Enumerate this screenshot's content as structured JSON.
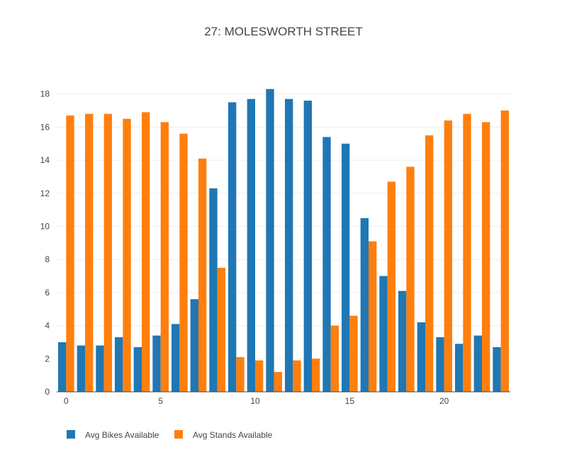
{
  "chart_data": {
    "type": "bar",
    "title": "27: MOLESWORTH STREET",
    "xlabel": "",
    "ylabel": "",
    "x": [
      0,
      1,
      2,
      3,
      4,
      5,
      6,
      7,
      8,
      9,
      10,
      11,
      12,
      13,
      14,
      15,
      16,
      17,
      18,
      19,
      20,
      21,
      22,
      23
    ],
    "xlim": [
      -0.5,
      23.5
    ],
    "ylim": [
      0,
      18.8
    ],
    "xticks": [
      0,
      5,
      10,
      15,
      20
    ],
    "yticks": [
      0,
      2,
      4,
      6,
      8,
      10,
      12,
      14,
      16,
      18
    ],
    "grid": true,
    "legend_position": "bottom-left",
    "series": [
      {
        "name": "Avg Bikes Available",
        "color": "#1f77b4",
        "values": [
          3.0,
          2.8,
          2.8,
          3.3,
          2.7,
          3.4,
          4.1,
          5.6,
          12.3,
          17.5,
          17.7,
          18.3,
          17.7,
          17.6,
          15.4,
          15.0,
          10.5,
          7.0,
          6.1,
          4.2,
          3.3,
          2.9,
          3.4,
          2.7
        ]
      },
      {
        "name": "Avg Stands Available",
        "color": "#ff7f0e",
        "values": [
          16.7,
          16.8,
          16.8,
          16.5,
          16.9,
          16.3,
          15.6,
          14.1,
          7.5,
          2.1,
          1.9,
          1.2,
          1.9,
          2.0,
          4.0,
          4.6,
          9.1,
          12.7,
          13.6,
          15.5,
          16.4,
          16.8,
          16.3,
          17.0
        ]
      }
    ]
  }
}
